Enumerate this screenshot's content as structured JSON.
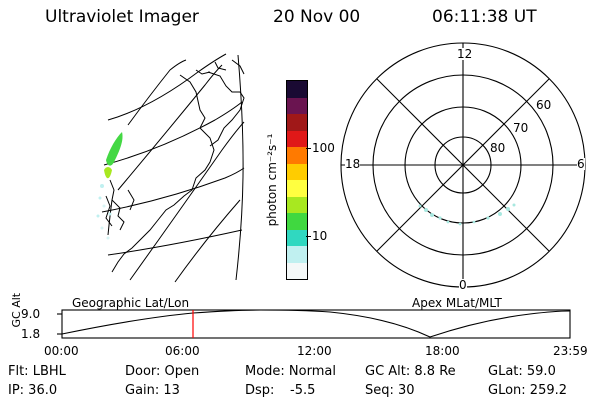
{
  "header": {
    "title": "Ultraviolet Imager",
    "date": "20 Nov 00",
    "time": "06:11:38 UT"
  },
  "colorbar": {
    "unit_label": "photon cm⁻²s⁻¹",
    "ticks": [
      "100",
      "10"
    ],
    "colors_top_to_bottom": [
      "#1a0a33",
      "#6a1450",
      "#a01818",
      "#e01818",
      "#ff7a00",
      "#ffcc00",
      "#ffff40",
      "#a8e820",
      "#40d840",
      "#30d8c0",
      "#c0f0f0",
      "#f4f8f8"
    ]
  },
  "polar_plot": {
    "mlt_labels": {
      "top": "12",
      "right": "6",
      "bottom": "0",
      "left": "18"
    },
    "lat_labels": [
      "60",
      "70",
      "80"
    ]
  },
  "timeline": {
    "left_title": "Geographic Lat/Lon",
    "right_title": "Apex MLat/MLT",
    "y_axis_label": "GC Alt",
    "y_ticks": [
      "9.0",
      "1.8"
    ],
    "x_ticks": [
      "00:00",
      "06:00",
      "12:00",
      "18:00",
      "23:59"
    ],
    "current_time_marker": "06:11"
  },
  "info": {
    "filter": "Flt: LBHL",
    "ip": "IP: 36.0",
    "door": "Door: Open",
    "gain": "Gain: 13",
    "mode": "Mode: Normal",
    "dsp_label": "Dsp:",
    "dsp_value": "-5.5",
    "gc_alt": "GC Alt: 8.8 Re",
    "seq": "Seq: 30",
    "glat": "GLat:  59.0",
    "glon": "GLon: 259.2"
  },
  "colors": {
    "aurora_green": "#44d844",
    "aurora_faint": "#a8e8e0",
    "marker_red": "#ff0000"
  }
}
